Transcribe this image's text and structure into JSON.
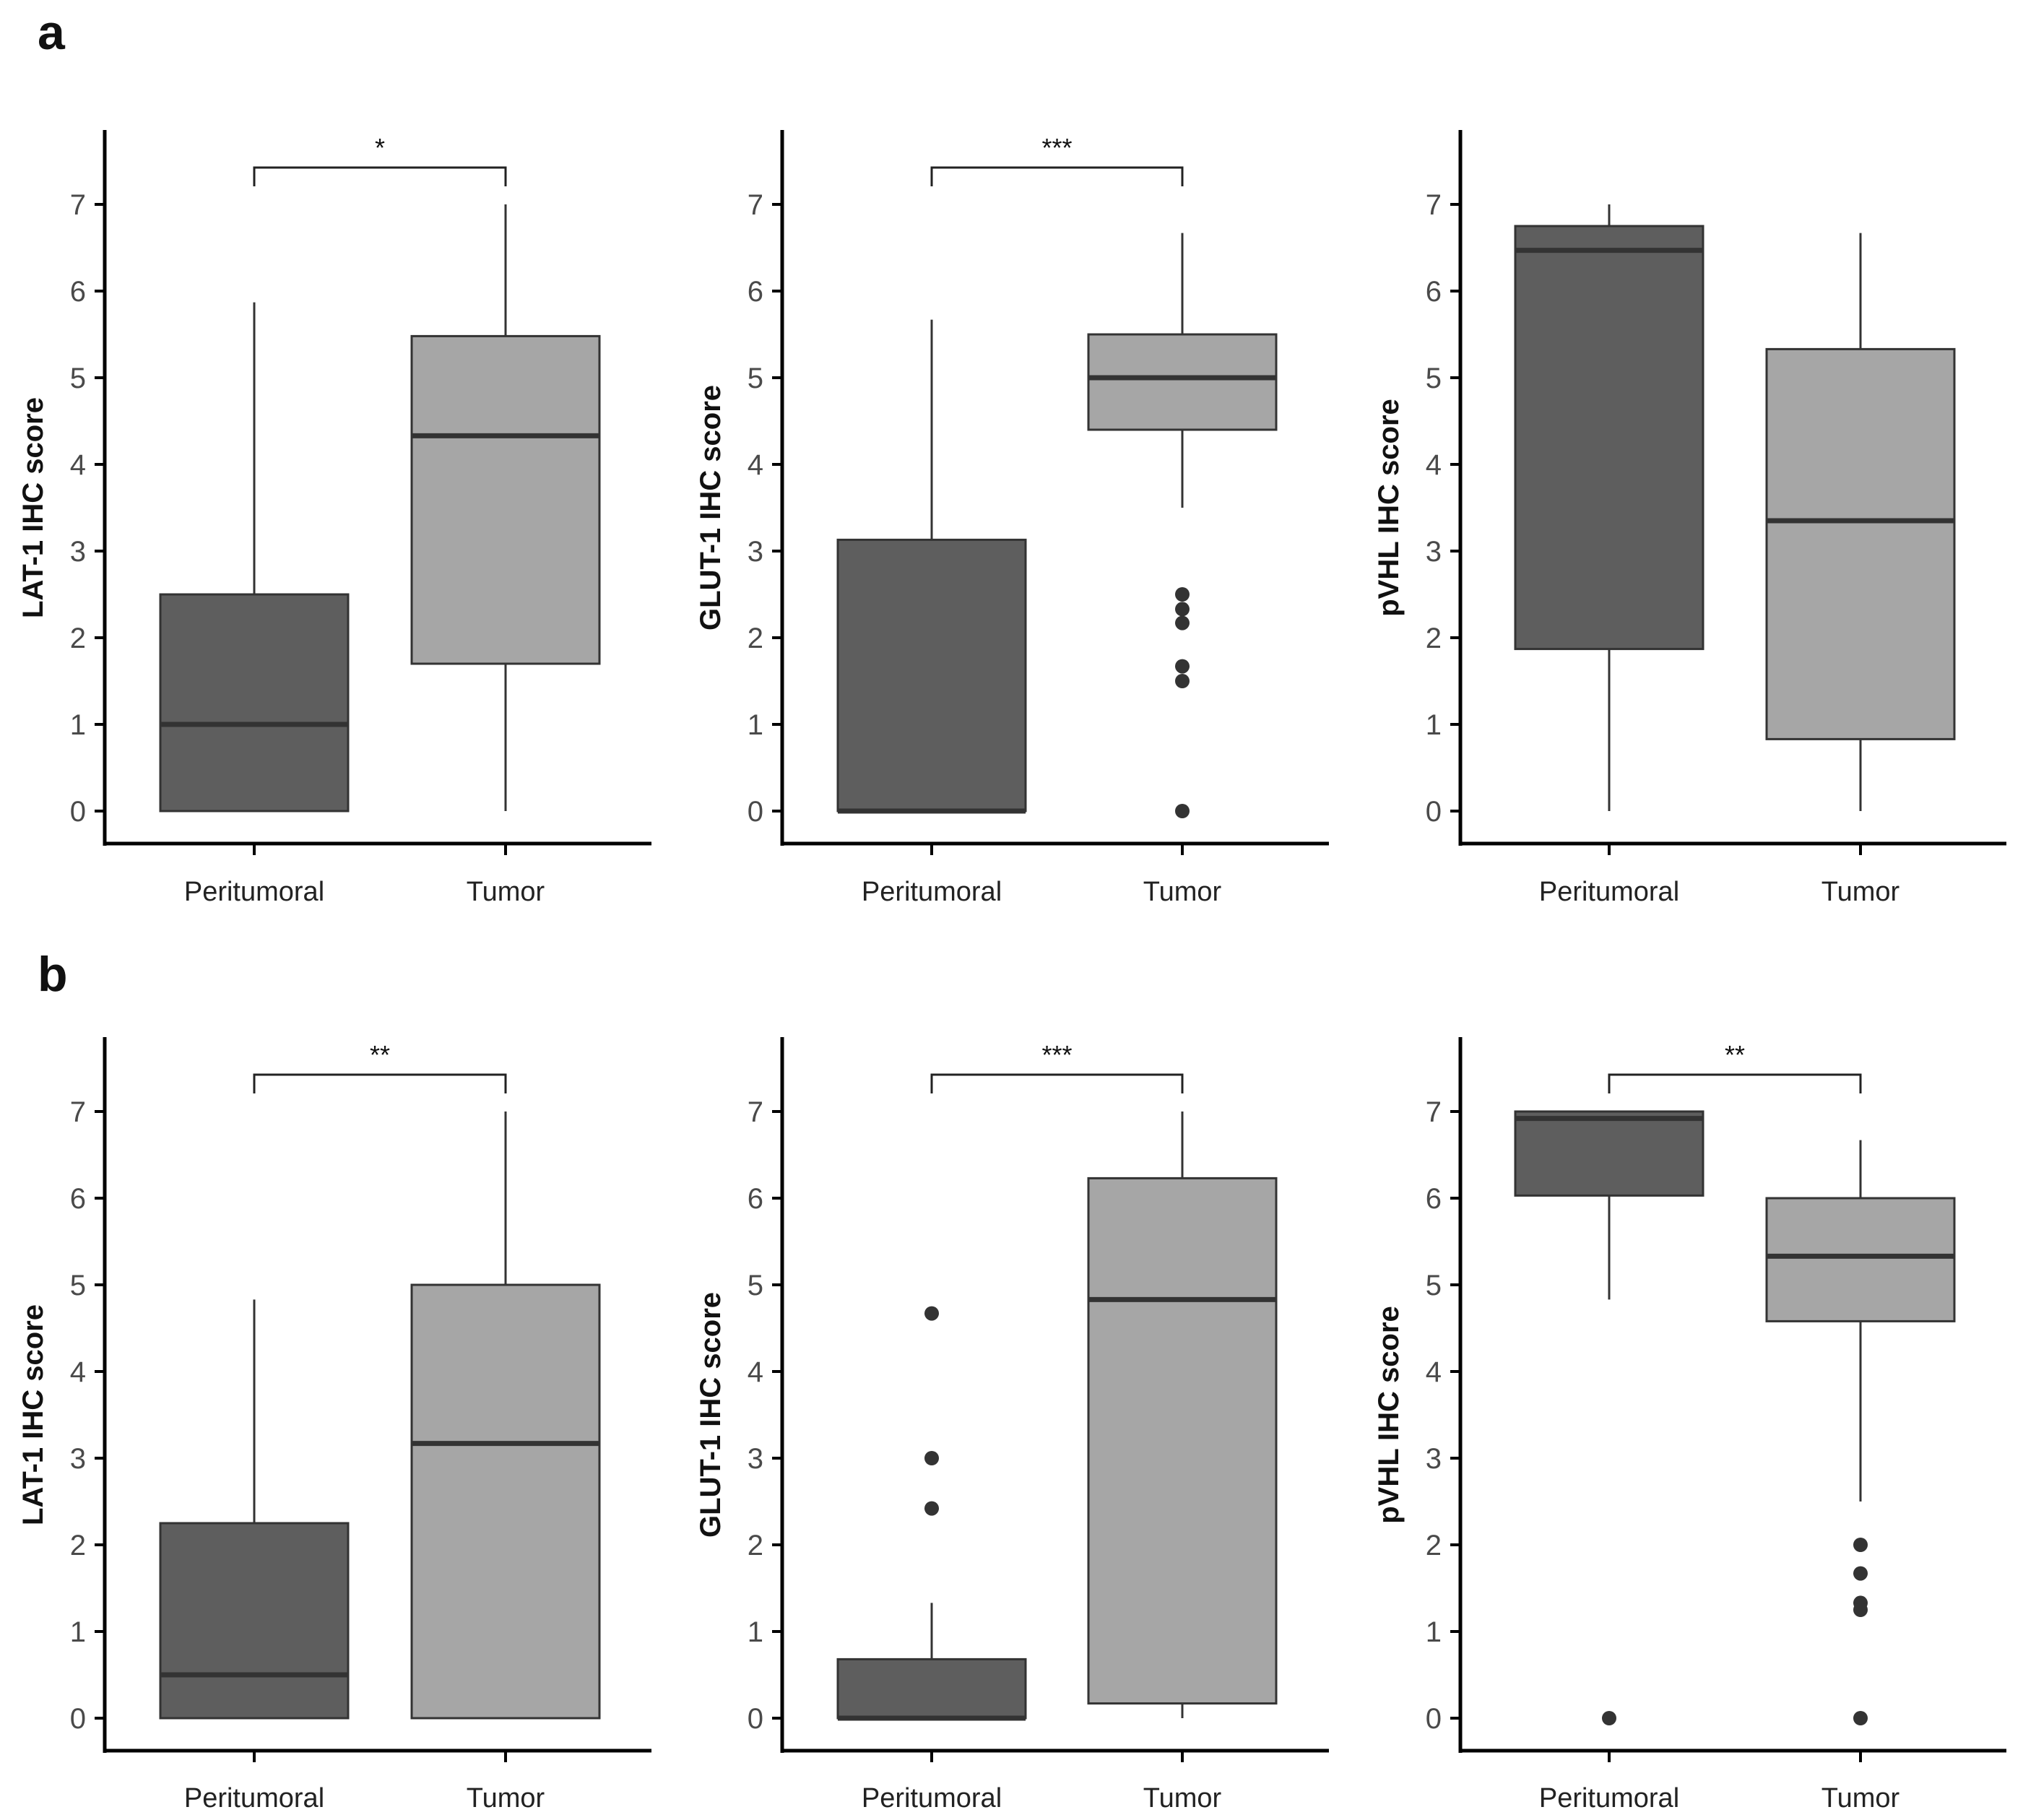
{
  "figure": {
    "panel_labels": [
      "a",
      "b"
    ]
  },
  "chart_data": [
    {
      "panel": "a",
      "type": "box",
      "ylabel": "LAT-1 IHC score",
      "categories": [
        "Peritumoral",
        "Tumor"
      ],
      "ylim": [
        -0.4,
        7.85
      ],
      "yticks": [
        0,
        1,
        2,
        3,
        4,
        5,
        6,
        7
      ],
      "significance": "*",
      "series": [
        {
          "name": "Peritumoral",
          "color": "#5e5e5e",
          "whisker_low": 0,
          "q1": 0,
          "median": 1.0,
          "q3": 2.5,
          "whisker_high": 5.87,
          "outliers": []
        },
        {
          "name": "Tumor",
          "color": "#a6a6a6",
          "whisker_low": 0,
          "q1": 1.7,
          "median": 4.33,
          "q3": 5.48,
          "whisker_high": 7.0,
          "outliers": []
        }
      ]
    },
    {
      "panel": "a",
      "type": "box",
      "ylabel": "GLUT-1 IHC score",
      "categories": [
        "Peritumoral",
        "Tumor"
      ],
      "ylim": [
        -0.4,
        7.85
      ],
      "yticks": [
        0,
        1,
        2,
        3,
        4,
        5,
        6,
        7
      ],
      "significance": "***",
      "series": [
        {
          "name": "Peritumoral",
          "color": "#5e5e5e",
          "whisker_low": 0,
          "q1": 0,
          "median": 0,
          "q3": 3.13,
          "whisker_high": 5.67,
          "outliers": []
        },
        {
          "name": "Tumor",
          "color": "#a6a6a6",
          "whisker_low": 3.5,
          "q1": 4.4,
          "median": 5.0,
          "q3": 5.5,
          "whisker_high": 6.67,
          "outliers": [
            2.5,
            2.33,
            2.17,
            1.67,
            1.5,
            0
          ]
        }
      ]
    },
    {
      "panel": "a",
      "type": "box",
      "ylabel": "pVHL IHC score",
      "categories": [
        "Peritumoral",
        "Tumor"
      ],
      "ylim": [
        -0.4,
        7.85
      ],
      "yticks": [
        0,
        1,
        2,
        3,
        4,
        5,
        6,
        7
      ],
      "significance": "",
      "series": [
        {
          "name": "Peritumoral",
          "color": "#5e5e5e",
          "whisker_low": 0,
          "q1": 1.87,
          "median": 6.47,
          "q3": 6.75,
          "whisker_high": 7.0,
          "outliers": []
        },
        {
          "name": "Tumor",
          "color": "#a6a6a6",
          "whisker_low": 0,
          "q1": 0.83,
          "median": 3.35,
          "q3": 5.33,
          "whisker_high": 6.67,
          "outliers": []
        }
      ]
    },
    {
      "panel": "b",
      "type": "box",
      "ylabel": "LAT-1 IHC score",
      "categories": [
        "Peritumoral",
        "Tumor"
      ],
      "ylim": [
        -0.4,
        7.85
      ],
      "yticks": [
        0,
        1,
        2,
        3,
        4,
        5,
        6,
        7
      ],
      "significance": "**",
      "series": [
        {
          "name": "Peritumoral",
          "color": "#5e5e5e",
          "whisker_low": 0,
          "q1": 0,
          "median": 0.5,
          "q3": 2.25,
          "whisker_high": 4.83,
          "outliers": []
        },
        {
          "name": "Tumor",
          "color": "#a6a6a6",
          "whisker_low": 0,
          "q1": 0,
          "median": 3.17,
          "q3": 5.0,
          "whisker_high": 7.0,
          "outliers": []
        }
      ]
    },
    {
      "panel": "b",
      "type": "box",
      "ylabel": "GLUT-1 IHC score",
      "categories": [
        "Peritumoral",
        "Tumor"
      ],
      "ylim": [
        -0.4,
        7.85
      ],
      "yticks": [
        0,
        1,
        2,
        3,
        4,
        5,
        6,
        7
      ],
      "significance": "***",
      "series": [
        {
          "name": "Peritumoral",
          "color": "#5e5e5e",
          "whisker_low": 0,
          "q1": 0,
          "median": 0,
          "q3": 0.68,
          "whisker_high": 1.33,
          "outliers": [
            4.67,
            3.0,
            2.42
          ]
        },
        {
          "name": "Tumor",
          "color": "#a6a6a6",
          "whisker_low": 0,
          "q1": 0.17,
          "median": 4.83,
          "q3": 6.23,
          "whisker_high": 7.0,
          "outliers": []
        }
      ]
    },
    {
      "panel": "b",
      "type": "box",
      "ylabel": "pVHL IHC score",
      "categories": [
        "Peritumoral",
        "Tumor"
      ],
      "ylim": [
        -0.4,
        7.85
      ],
      "yticks": [
        0,
        1,
        2,
        3,
        4,
        5,
        6,
        7
      ],
      "significance": "**",
      "series": [
        {
          "name": "Peritumoral",
          "color": "#5e5e5e",
          "whisker_low": 4.83,
          "q1": 6.03,
          "median": 6.92,
          "q3": 7.0,
          "whisker_high": 7.0,
          "outliers": [
            0
          ]
        },
        {
          "name": "Tumor",
          "color": "#a6a6a6",
          "whisker_low": 2.5,
          "q1": 4.58,
          "median": 5.33,
          "q3": 6.0,
          "whisker_high": 6.67,
          "outliers": [
            2.0,
            1.67,
            1.33,
            1.25,
            0
          ]
        }
      ]
    }
  ]
}
